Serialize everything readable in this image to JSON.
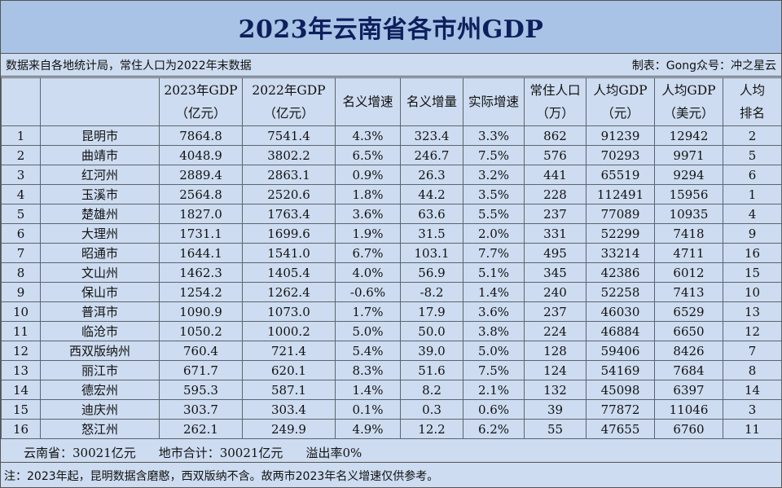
{
  "title": "2023年云南省各市州GDP",
  "source_left": "数据来自各地统计局，常住人口为2022年末数据",
  "source_right": "制表：Gong众号：冲之星云",
  "headers": [
    {
      "l1": "",
      "l2": ""
    },
    {
      "l1": "",
      "l2": ""
    },
    {
      "l1": "2023年GDP",
      "l2": "（亿元）"
    },
    {
      "l1": "2022年GDP",
      "l2": "（亿元）"
    },
    {
      "l1": "名义增速",
      "l2": ""
    },
    {
      "l1": "名义增量",
      "l2": ""
    },
    {
      "l1": "实际增速",
      "l2": ""
    },
    {
      "l1": "常住人口",
      "l2": "（万）"
    },
    {
      "l1": "人均GDP",
      "l2": "（元）"
    },
    {
      "l1": "人均GDP",
      "l2": "（美元）"
    },
    {
      "l1": "人均",
      "l2": "排名"
    }
  ],
  "rows": [
    [
      "1",
      "昆明市",
      "7864.8",
      "7541.4",
      "4.3%",
      "323.4",
      "3.3%",
      "862",
      "91239",
      "12942",
      "2"
    ],
    [
      "2",
      "曲靖市",
      "4048.9",
      "3802.2",
      "6.5%",
      "246.7",
      "7.5%",
      "576",
      "70293",
      "9971",
      "5"
    ],
    [
      "3",
      "红河州",
      "2889.4",
      "2863.1",
      "0.9%",
      "26.3",
      "3.2%",
      "441",
      "65519",
      "9294",
      "6"
    ],
    [
      "4",
      "玉溪市",
      "2564.8",
      "2520.6",
      "1.8%",
      "44.2",
      "3.5%",
      "228",
      "112491",
      "15956",
      "1"
    ],
    [
      "5",
      "楚雄州",
      "1827.0",
      "1763.4",
      "3.6%",
      "63.6",
      "5.5%",
      "237",
      "77089",
      "10935",
      "4"
    ],
    [
      "6",
      "大理州",
      "1731.1",
      "1699.6",
      "1.9%",
      "31.5",
      "2.0%",
      "331",
      "52299",
      "7418",
      "9"
    ],
    [
      "7",
      "昭通市",
      "1644.1",
      "1541.0",
      "6.7%",
      "103.1",
      "7.7%",
      "495",
      "33214",
      "4711",
      "16"
    ],
    [
      "8",
      "文山州",
      "1462.3",
      "1405.4",
      "4.0%",
      "56.9",
      "5.1%",
      "345",
      "42386",
      "6012",
      "15"
    ],
    [
      "9",
      "保山市",
      "1254.2",
      "1262.4",
      "-0.6%",
      "-8.2",
      "1.4%",
      "240",
      "52258",
      "7413",
      "10"
    ],
    [
      "10",
      "普洱市",
      "1090.9",
      "1073.0",
      "1.7%",
      "17.9",
      "3.6%",
      "237",
      "46030",
      "6529",
      "13"
    ],
    [
      "11",
      "临沧市",
      "1050.2",
      "1000.2",
      "5.0%",
      "50.0",
      "3.8%",
      "224",
      "46884",
      "6650",
      "12"
    ],
    [
      "12",
      "西双版纳州",
      "760.4",
      "721.4",
      "5.4%",
      "39.0",
      "5.0%",
      "128",
      "59406",
      "8426",
      "7"
    ],
    [
      "13",
      "丽江市",
      "671.7",
      "620.1",
      "8.3%",
      "51.6",
      "7.5%",
      "124",
      "54169",
      "7684",
      "8"
    ],
    [
      "14",
      "德宏州",
      "595.3",
      "587.1",
      "1.4%",
      "8.2",
      "2.1%",
      "132",
      "45098",
      "6397",
      "14"
    ],
    [
      "15",
      "迪庆州",
      "303.7",
      "303.4",
      "0.1%",
      "0.3",
      "0.6%",
      "39",
      "77872",
      "11046",
      "3"
    ],
    [
      "16",
      "怒江州",
      "262.1",
      "249.9",
      "4.9%",
      "12.2",
      "6.2%",
      "55",
      "47655",
      "6760",
      "11"
    ]
  ],
  "summary": {
    "province": "云南省：30021亿元",
    "sum": "地市合计：30021亿元",
    "overflow": "溢出率0%"
  },
  "note": "注：2023年起，昆明数据含磨憨，西双版纳不含。故两市2023年名义增速仅供参考。"
}
